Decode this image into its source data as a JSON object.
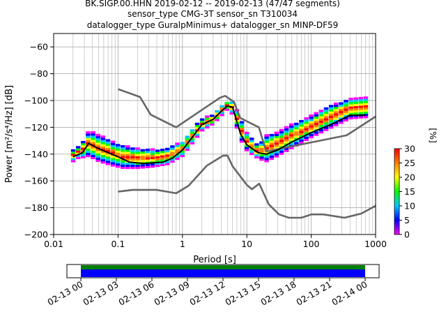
{
  "chart_data": {
    "type": "heatmap",
    "title_lines": [
      "BK.SIGP.00.HHN   2019-02-12 -- 2019-02-13  (47/47 segments)",
      "sensor_type CMG-3T sensor_sn T310034",
      "datalogger_type GuralpMinimus+ datalogger_sn MINP-DF59"
    ],
    "xlabel": "Period [s]",
    "ylabel": "Power [m²/s⁴/Hz] [dB]",
    "xscale": "log",
    "xlim": [
      0.01,
      1000
    ],
    "ylim": [
      -200,
      -50
    ],
    "grid": true,
    "x_ticks": [
      0.01,
      0.1,
      1,
      10,
      100,
      1000
    ],
    "x_tick_labels": [
      "0.01",
      "0.1",
      "1",
      "10",
      "100",
      "1000"
    ],
    "y_ticks": [
      -200,
      -180,
      -160,
      -140,
      -120,
      -100,
      -80,
      -60
    ],
    "y_tick_labels": [
      "−200",
      "−180",
      "−160",
      "−140",
      "−120",
      "−100",
      "−80",
      "−60"
    ],
    "colorbar": {
      "label": "[%]",
      "range": [
        0,
        30
      ],
      "ticks": [
        0,
        5,
        10,
        15,
        20,
        25,
        30
      ],
      "tick_labels": [
        "0",
        "5",
        "10",
        "15",
        "20",
        "25",
        "30"
      ],
      "colors": [
        "#ff00ff",
        "#0000ff",
        "#00c8ff",
        "#00ff00",
        "#ffff00",
        "#ff8000",
        "#ff0000"
      ]
    },
    "series": [
      {
        "role": "high_noise_model",
        "color": "#666666",
        "points": [
          [
            0.1,
            -91.5
          ],
          [
            0.22,
            -97.4
          ],
          [
            0.32,
            -110.5
          ],
          [
            0.8,
            -120
          ],
          [
            3.8,
            -98
          ],
          [
            4.6,
            -96.5
          ],
          [
            6.3,
            -101
          ],
          [
            7.9,
            -113
          ],
          [
            15.4,
            -120
          ],
          [
            20,
            -138
          ],
          [
            354.8,
            -126
          ],
          [
            1000,
            -112
          ]
        ]
      },
      {
        "role": "low_noise_model",
        "color": "#666666",
        "points": [
          [
            0.1,
            -168
          ],
          [
            0.17,
            -166.7
          ],
          [
            0.4,
            -166.7
          ],
          [
            0.8,
            -169.2
          ],
          [
            1.24,
            -163.7
          ],
          [
            2.4,
            -148.6
          ],
          [
            4.3,
            -141.1
          ],
          [
            5,
            -141.1
          ],
          [
            6,
            -149
          ],
          [
            10,
            -163
          ],
          [
            12,
            -166.2
          ],
          [
            15.6,
            -162.1
          ],
          [
            21.9,
            -177.5
          ],
          [
            31.6,
            -185
          ],
          [
            45,
            -187.5
          ],
          [
            70,
            -187.5
          ],
          [
            101,
            -185
          ],
          [
            154,
            -185
          ],
          [
            328,
            -187.5
          ],
          [
            600,
            -184.4
          ],
          [
            1000,
            -178.6
          ]
        ]
      },
      {
        "role": "mode",
        "color": "#000000",
        "points": [
          [
            0.02,
            -142
          ],
          [
            0.028,
            -139
          ],
          [
            0.035,
            -132
          ],
          [
            0.05,
            -136
          ],
          [
            0.1,
            -142
          ],
          [
            0.15,
            -146
          ],
          [
            0.25,
            -147
          ],
          [
            0.5,
            -146
          ],
          [
            0.7,
            -143
          ],
          [
            1,
            -137
          ],
          [
            1.5,
            -126
          ],
          [
            2,
            -118
          ],
          [
            3,
            -114
          ],
          [
            4,
            -108
          ],
          [
            5,
            -104
          ],
          [
            6,
            -105
          ],
          [
            8,
            -125
          ],
          [
            10,
            -133
          ],
          [
            15,
            -139
          ],
          [
            20,
            -140
          ],
          [
            30,
            -137
          ],
          [
            50,
            -131
          ],
          [
            100,
            -124
          ],
          [
            200,
            -118
          ],
          [
            400,
            -111
          ],
          [
            700,
            -111
          ]
        ]
      }
    ],
    "psd_bands": [
      {
        "period": 0.02,
        "low": -146,
        "high": -137
      },
      {
        "period": 0.025,
        "low": -143,
        "high": -134
      },
      {
        "period": 0.03,
        "low": -143,
        "high": -129
      },
      {
        "period": 0.035,
        "low": -142,
        "high": -123
      },
      {
        "period": 0.05,
        "low": -146,
        "high": -126
      },
      {
        "period": 0.08,
        "low": -149,
        "high": -131
      },
      {
        "period": 0.12,
        "low": -151,
        "high": -134
      },
      {
        "period": 0.2,
        "low": -151,
        "high": -136
      },
      {
        "period": 0.35,
        "low": -150,
        "high": -137
      },
      {
        "period": 0.6,
        "low": -148,
        "high": -136
      },
      {
        "period": 1,
        "low": -142,
        "high": -131
      },
      {
        "period": 1.5,
        "low": -131,
        "high": -120
      },
      {
        "period": 2,
        "low": -123,
        "high": -114
      },
      {
        "period": 3,
        "low": -118,
        "high": -111
      },
      {
        "period": 4,
        "low": -112,
        "high": -104
      },
      {
        "period": 5,
        "low": -107,
        "high": -101
      },
      {
        "period": 6,
        "low": -111,
        "high": -101
      },
      {
        "period": 8,
        "low": -130,
        "high": -114
      },
      {
        "period": 10,
        "low": -138,
        "high": -125
      },
      {
        "period": 15,
        "low": -144,
        "high": -134
      },
      {
        "period": 20,
        "low": -146,
        "high": -126
      },
      {
        "period": 30,
        "low": -142,
        "high": -124
      },
      {
        "period": 50,
        "low": -136,
        "high": -118
      },
      {
        "period": 100,
        "low": -128,
        "high": -112
      },
      {
        "period": 200,
        "low": -121,
        "high": -104
      },
      {
        "period": 400,
        "low": -114,
        "high": -99
      },
      {
        "period": 700,
        "low": -113,
        "high": -98
      }
    ],
    "coverage": {
      "tick_labels": [
        "02-13 00",
        "02-13 03",
        "02-13 06",
        "02-13 09",
        "02-13 12",
        "02-13 15",
        "02-13 18",
        "02-13 21",
        "02-14 00"
      ],
      "bar_colors": [
        "#008000",
        "#0000ff"
      ]
    }
  }
}
